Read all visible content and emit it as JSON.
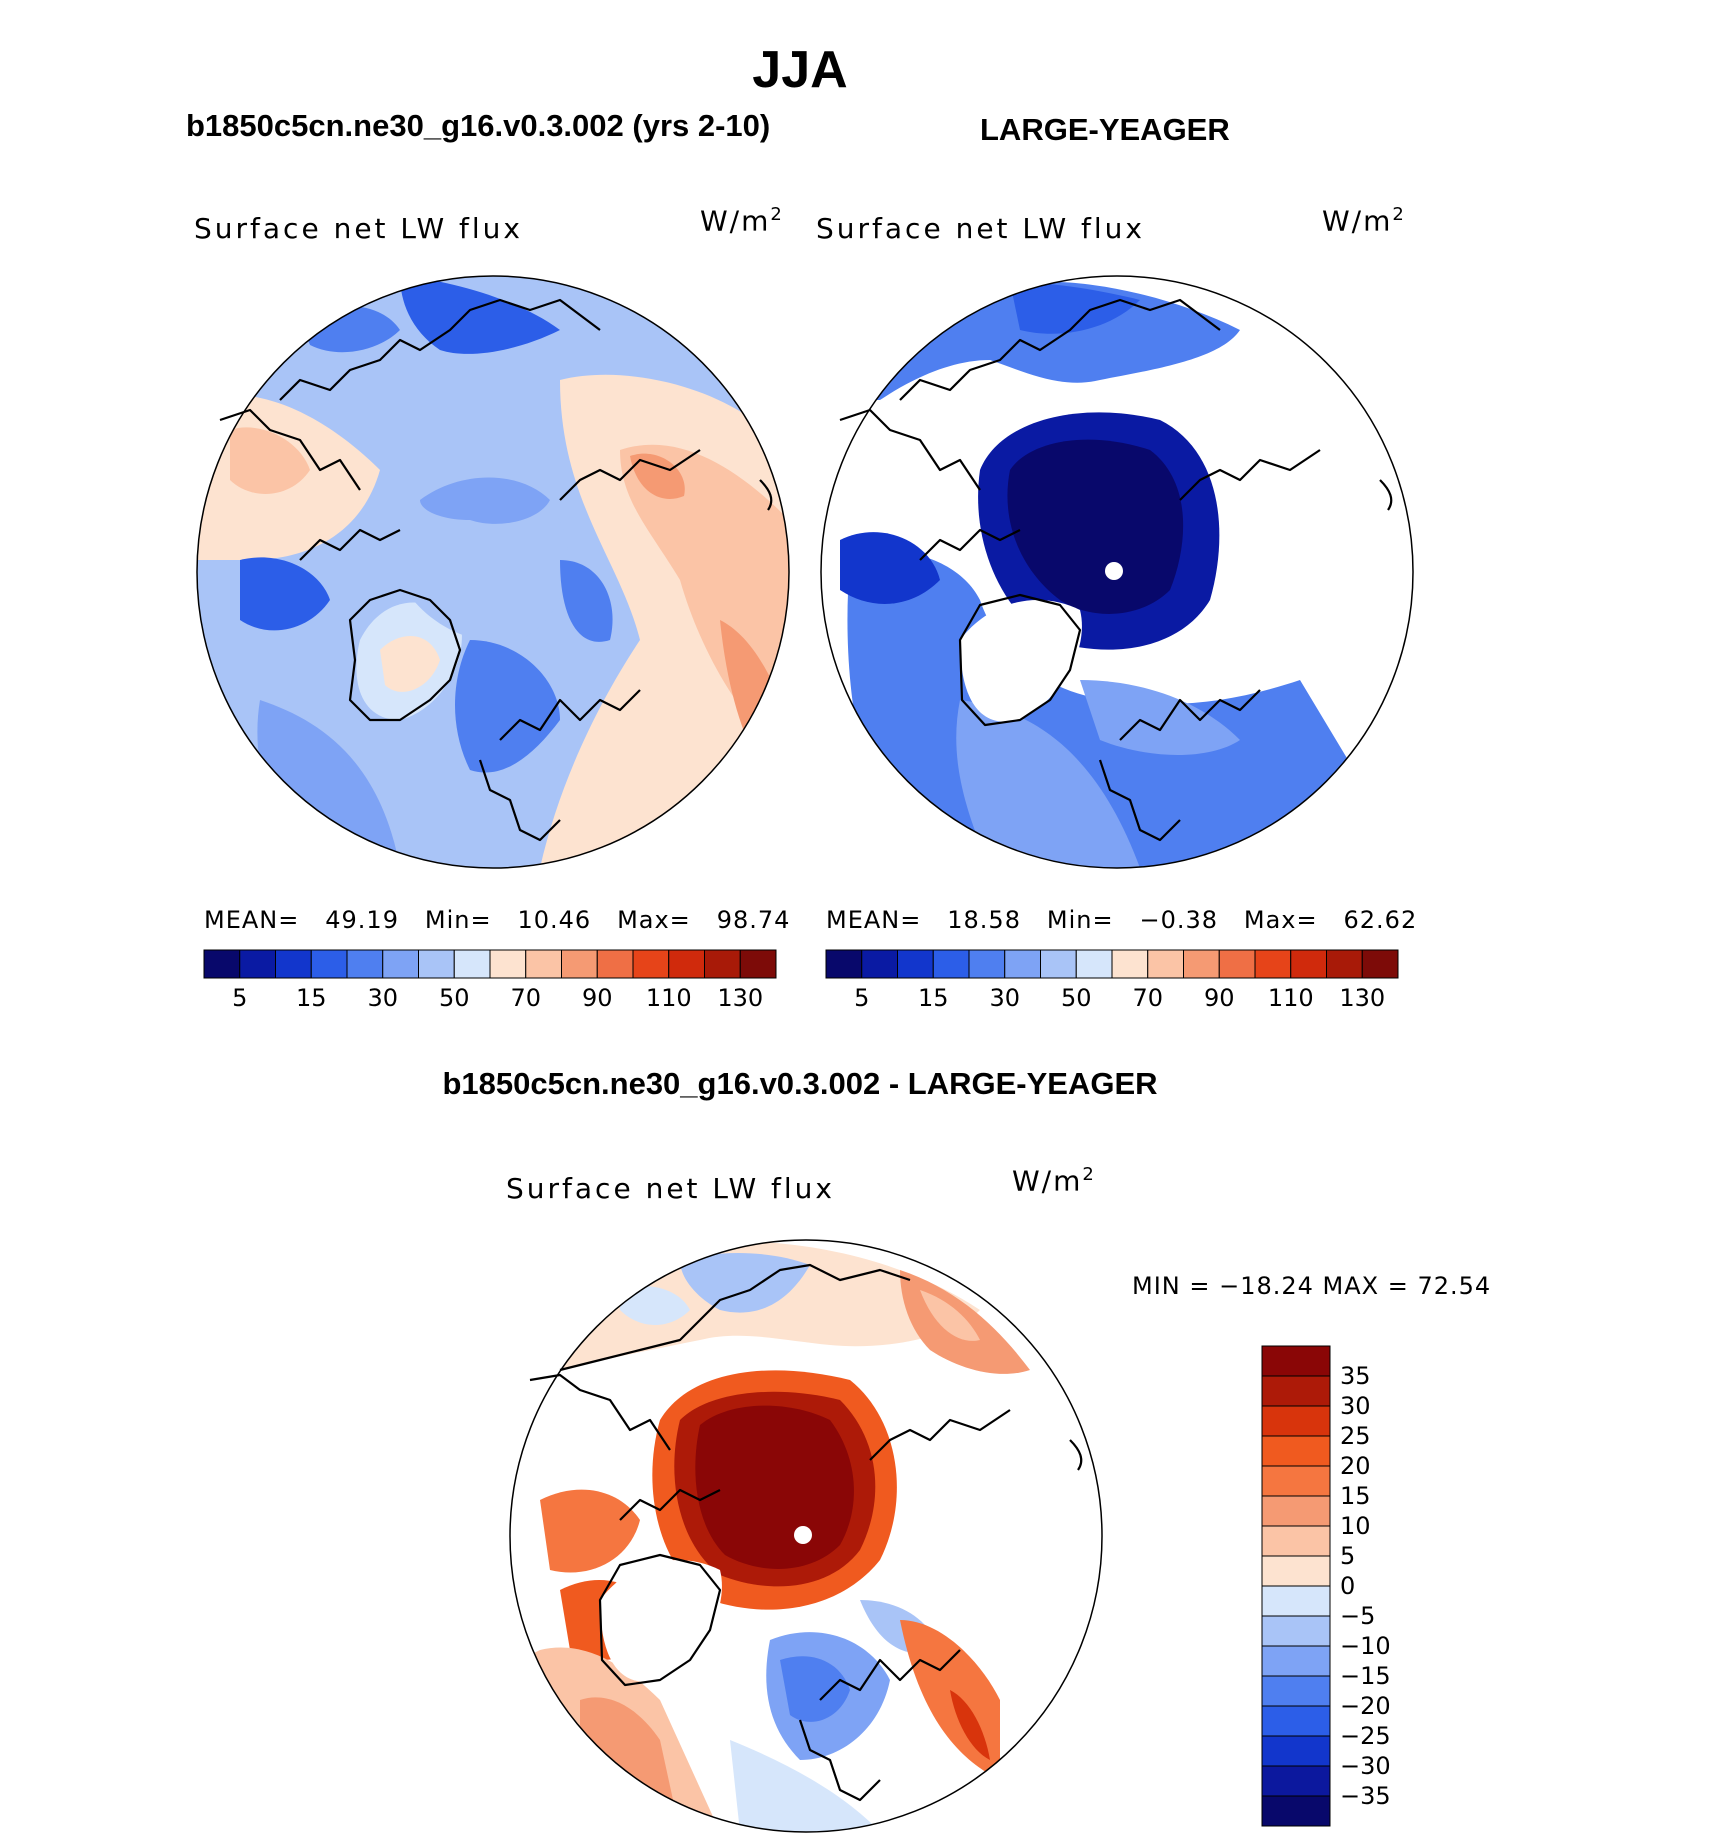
{
  "figure": {
    "season": "JJA",
    "left_case": "b1850c5cn.ne30_g16.v0.3.002 (yrs 2-10)",
    "right_case": "LARGE-YEAGER",
    "diff_title": "b1850c5cn.ne30_g16.v0.3.002 - LARGE-YEAGER"
  },
  "panels": [
    {
      "variable": "Surface net LW flux",
      "unit_base": "W/m",
      "unit_exp": "2",
      "stats": {
        "mean_label": "MEAN=",
        "mean": "49.19",
        "min_label": "Min=",
        "min": "10.46",
        "max_label": "Max=",
        "max": "98.74"
      }
    },
    {
      "variable": "Surface net LW flux",
      "unit_base": "W/m",
      "unit_exp": "2",
      "stats": {
        "mean_label": "MEAN=",
        "mean": "18.58",
        "min_label": "Min=",
        "min": "−0.38",
        "max_label": "Max=",
        "max": "62.62"
      }
    },
    {
      "variable": "Surface net LW flux",
      "unit_base": "W/m",
      "unit_exp": "2",
      "minmax_text": "MIN = −18.24 MAX =   72.54"
    }
  ],
  "colors": {
    "abs_scale": [
      "#08086b",
      "#0a1aa3",
      "#1236cc",
      "#2c5ee8",
      "#4f7ff0",
      "#7ea3f5",
      "#a9c4f7",
      "#d6e6fb",
      "#fde3d0",
      "#fbc4a6",
      "#f59a73",
      "#ef6f45",
      "#e64419",
      "#d02a0c",
      "#a81a08",
      "#7d0b08"
    ],
    "diff_scale": [
      "#08086b",
      "#0c189e",
      "#1236cc",
      "#2c5ee8",
      "#4f7ff0",
      "#7ea3f5",
      "#a9c4f7",
      "#d6e6fb",
      "#fde3d0",
      "#fbc4a6",
      "#f59a73",
      "#f57640",
      "#f05a1f",
      "#d8340c",
      "#ad1a08",
      "#8a0606"
    ],
    "coast": "#000000"
  },
  "chart_data": [
    {
      "type": "heatmap",
      "projection": "north polar stereographic",
      "title": "Surface net LW flux",
      "case": "b1850c5cn.ne30_g16.v0.3.002 (yrs 2-10)",
      "units": "W/m2",
      "mean": 49.19,
      "min": 10.46,
      "max": 98.74,
      "colorbar_levels": [
        5,
        10,
        15,
        20,
        30,
        40,
        50,
        60,
        70,
        80,
        90,
        100,
        110,
        120,
        130
      ],
      "colorbar_labels": [
        "5",
        "15",
        "30",
        "50",
        "70",
        "90",
        "110",
        "130"
      ]
    },
    {
      "type": "heatmap",
      "projection": "north polar stereographic",
      "title": "Surface net LW flux",
      "case": "LARGE-YEAGER",
      "units": "W/m2",
      "mean": 18.58,
      "min": -0.38,
      "max": 62.62,
      "colorbar_levels": [
        5,
        10,
        15,
        20,
        30,
        40,
        50,
        60,
        70,
        80,
        90,
        100,
        110,
        120,
        130
      ],
      "colorbar_labels": [
        "5",
        "15",
        "30",
        "50",
        "70",
        "90",
        "110",
        "130"
      ]
    },
    {
      "type": "heatmap",
      "projection": "north polar stereographic",
      "title": "Surface net LW flux",
      "case": "b1850c5cn.ne30_g16.v0.3.002 - LARGE-YEAGER",
      "units": "W/m2",
      "min": -18.24,
      "max": 72.54,
      "colorbar_levels": [
        -35,
        -30,
        -25,
        -20,
        -15,
        -10,
        -5,
        0,
        5,
        10,
        15,
        20,
        25,
        30,
        35
      ],
      "colorbar_labels": [
        "35",
        "30",
        "25",
        "20",
        "15",
        "10",
        "5",
        "0",
        "−5",
        "−10",
        "−15",
        "−20",
        "−25",
        "−30",
        "−35"
      ]
    }
  ]
}
